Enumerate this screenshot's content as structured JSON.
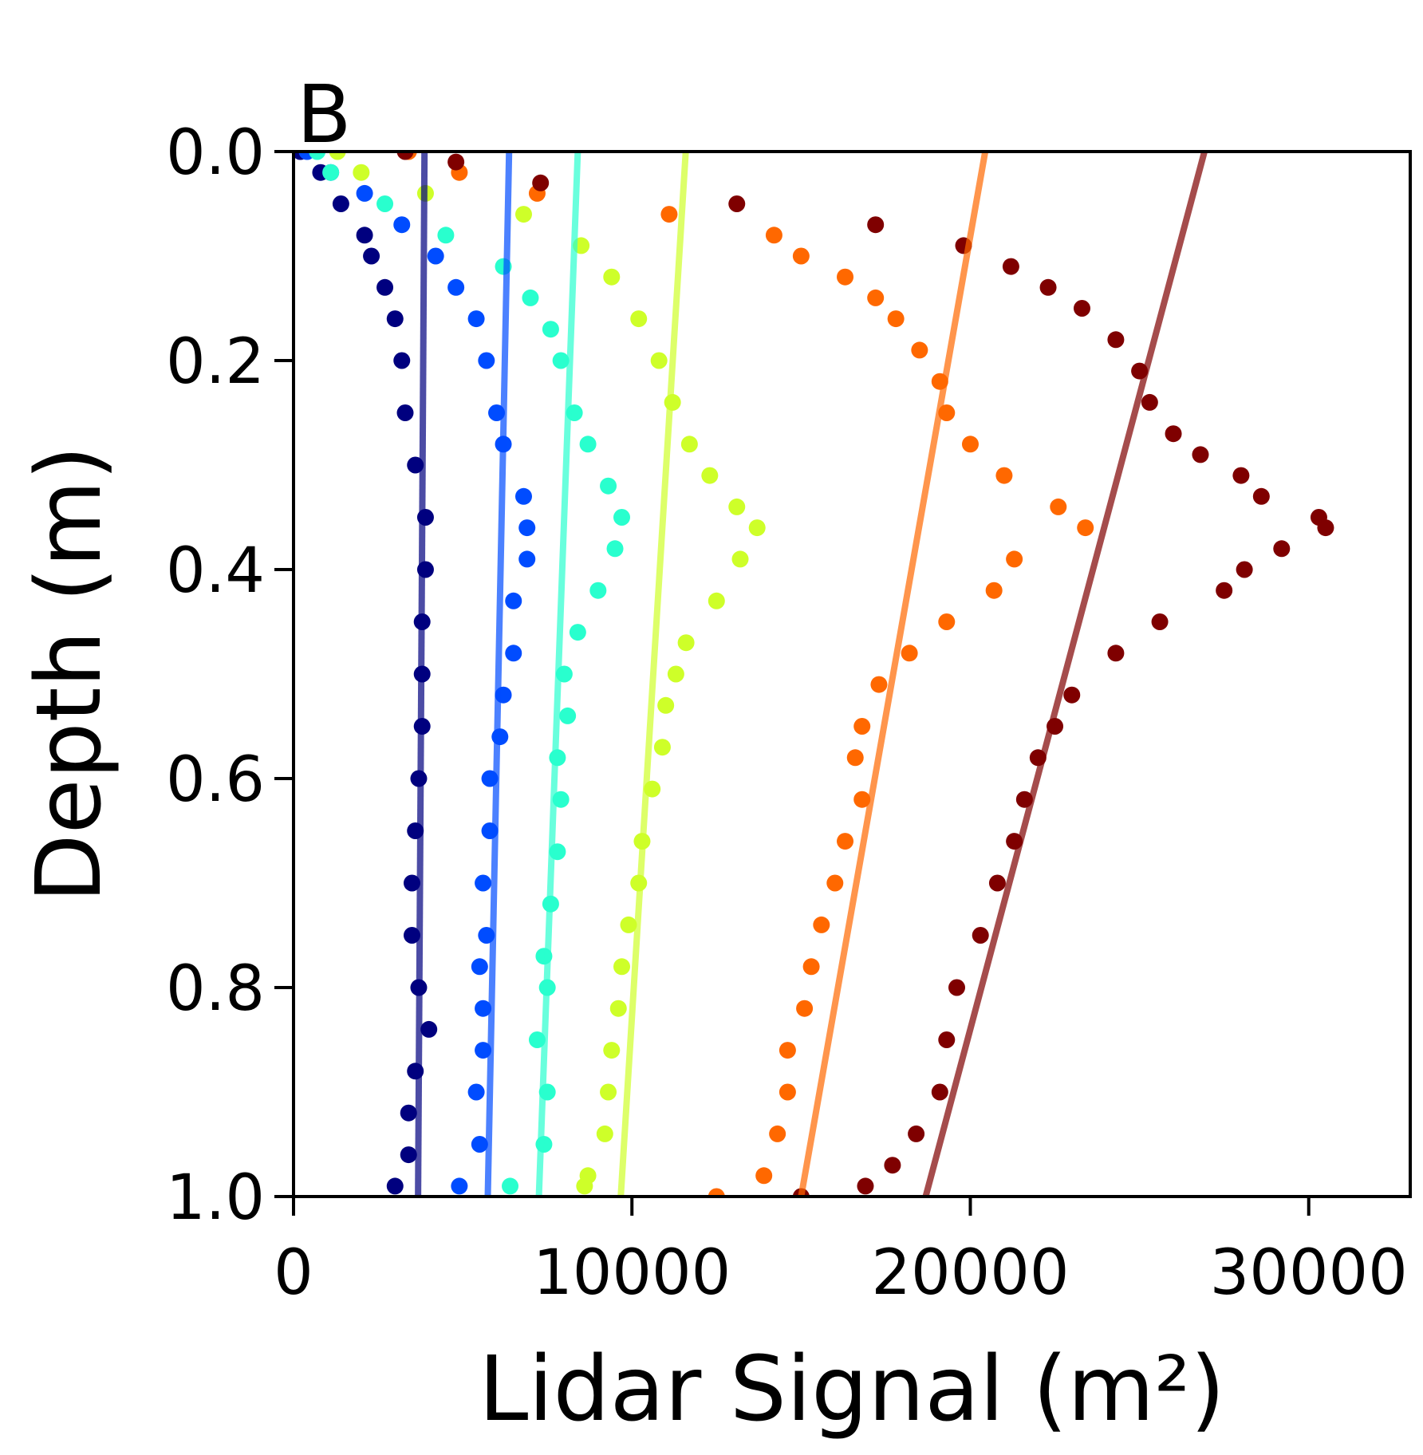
{
  "chart_data": {
    "type": "scatter",
    "panel_label": "B",
    "xlabel": "Lidar Signal (m²)",
    "ylabel": "Depth (m)",
    "xlim": [
      0,
      33000
    ],
    "ylim": [
      1.0,
      0.0
    ],
    "y_inverted": true,
    "grid": false,
    "legend": "none",
    "x_ticks": [
      "0",
      "10000",
      "20000",
      "30000"
    ],
    "x_tick_values": [
      0,
      10000,
      20000,
      30000
    ],
    "y_ticks": [
      "0.0",
      "0.2",
      "0.4",
      "0.6",
      "0.8",
      "1.0"
    ],
    "y_tick_values": [
      0,
      0.2,
      0.4,
      0.6,
      0.8,
      1.0
    ],
    "clipped_neighbor_label": "0",
    "series": [
      {
        "color": "#00007f",
        "fit_line": {
          "x_at_top": 3870,
          "x_at_bottom": 3680
        },
        "points": [
          [
            200,
            0.0
          ],
          [
            800,
            0.02
          ],
          [
            1400,
            0.05
          ],
          [
            2100,
            0.08
          ],
          [
            2300,
            0.1
          ],
          [
            2700,
            0.13
          ],
          [
            3000,
            0.16
          ],
          [
            3200,
            0.2
          ],
          [
            3300,
            0.25
          ],
          [
            3600,
            0.3
          ],
          [
            3900,
            0.35
          ],
          [
            3900,
            0.4
          ],
          [
            3800,
            0.45
          ],
          [
            3800,
            0.5
          ],
          [
            3800,
            0.55
          ],
          [
            3700,
            0.6
          ],
          [
            3600,
            0.65
          ],
          [
            3500,
            0.7
          ],
          [
            3500,
            0.75
          ],
          [
            3700,
            0.8
          ],
          [
            4000,
            0.84
          ],
          [
            3600,
            0.88
          ],
          [
            3400,
            0.92
          ],
          [
            3400,
            0.96
          ],
          [
            3000,
            0.99
          ]
        ]
      },
      {
        "color": "#004cff",
        "fit_line": {
          "x_at_top": 6370,
          "x_at_bottom": 5740
        },
        "points": [
          [
            400,
            0.0
          ],
          [
            1100,
            0.02
          ],
          [
            2100,
            0.04
          ],
          [
            3200,
            0.07
          ],
          [
            4200,
            0.1
          ],
          [
            4800,
            0.13
          ],
          [
            5400,
            0.16
          ],
          [
            5700,
            0.2
          ],
          [
            6000,
            0.25
          ],
          [
            6200,
            0.28
          ],
          [
            6800,
            0.33
          ],
          [
            6900,
            0.36
          ],
          [
            6900,
            0.39
          ],
          [
            6500,
            0.43
          ],
          [
            6500,
            0.48
          ],
          [
            6200,
            0.52
          ],
          [
            6100,
            0.56
          ],
          [
            5800,
            0.6
          ],
          [
            5800,
            0.65
          ],
          [
            5600,
            0.7
          ],
          [
            5700,
            0.75
          ],
          [
            5500,
            0.78
          ],
          [
            5600,
            0.82
          ],
          [
            5600,
            0.86
          ],
          [
            5400,
            0.9
          ],
          [
            5500,
            0.95
          ],
          [
            4900,
            0.99
          ]
        ]
      },
      {
        "color": "#29ffce",
        "fit_line": {
          "x_at_top": 8400,
          "x_at_bottom": 7250
        },
        "points": [
          [
            700,
            0.0
          ],
          [
            1100,
            0.02
          ],
          [
            2700,
            0.05
          ],
          [
            4500,
            0.08
          ],
          [
            6200,
            0.11
          ],
          [
            7000,
            0.14
          ],
          [
            7600,
            0.17
          ],
          [
            7900,
            0.2
          ],
          [
            8300,
            0.25
          ],
          [
            8700,
            0.28
          ],
          [
            9300,
            0.32
          ],
          [
            9700,
            0.35
          ],
          [
            9500,
            0.38
          ],
          [
            9000,
            0.42
          ],
          [
            8400,
            0.46
          ],
          [
            8000,
            0.5
          ],
          [
            8100,
            0.54
          ],
          [
            7800,
            0.58
          ],
          [
            7900,
            0.62
          ],
          [
            7800,
            0.67
          ],
          [
            7600,
            0.72
          ],
          [
            7400,
            0.77
          ],
          [
            7500,
            0.8
          ],
          [
            7200,
            0.85
          ],
          [
            7500,
            0.9
          ],
          [
            7400,
            0.95
          ],
          [
            6400,
            0.99
          ]
        ]
      },
      {
        "color": "#ceff29",
        "fit_line": {
          "x_at_top": 11590,
          "x_at_bottom": 9670
        },
        "points": [
          [
            1300,
            0.0
          ],
          [
            2000,
            0.02
          ],
          [
            3900,
            0.04
          ],
          [
            6800,
            0.06
          ],
          [
            8500,
            0.09
          ],
          [
            9400,
            0.12
          ],
          [
            10200,
            0.16
          ],
          [
            10800,
            0.2
          ],
          [
            11200,
            0.24
          ],
          [
            11700,
            0.28
          ],
          [
            12300,
            0.31
          ],
          [
            13100,
            0.34
          ],
          [
            13700,
            0.36
          ],
          [
            13200,
            0.39
          ],
          [
            12500,
            0.43
          ],
          [
            11600,
            0.47
          ],
          [
            11300,
            0.5
          ],
          [
            11000,
            0.53
          ],
          [
            10900,
            0.57
          ],
          [
            10600,
            0.61
          ],
          [
            10300,
            0.66
          ],
          [
            10200,
            0.7
          ],
          [
            9900,
            0.74
          ],
          [
            9700,
            0.78
          ],
          [
            9600,
            0.82
          ],
          [
            9400,
            0.86
          ],
          [
            9300,
            0.9
          ],
          [
            9200,
            0.94
          ],
          [
            8700,
            0.98
          ],
          [
            8600,
            0.99
          ]
        ]
      },
      {
        "color": "#ff6800",
        "fit_line": {
          "x_at_top": 20440,
          "x_at_bottom": 15000
        },
        "points": [
          [
            3400,
            0.0
          ],
          [
            4900,
            0.02
          ],
          [
            7200,
            0.04
          ],
          [
            11100,
            0.06
          ],
          [
            14200,
            0.08
          ],
          [
            15000,
            0.1
          ],
          [
            16300,
            0.12
          ],
          [
            17200,
            0.14
          ],
          [
            17800,
            0.16
          ],
          [
            18500,
            0.19
          ],
          [
            19100,
            0.22
          ],
          [
            19300,
            0.25
          ],
          [
            20000,
            0.28
          ],
          [
            21000,
            0.31
          ],
          [
            22600,
            0.34
          ],
          [
            23400,
            0.36
          ],
          [
            21300,
            0.39
          ],
          [
            20700,
            0.42
          ],
          [
            19300,
            0.45
          ],
          [
            18200,
            0.48
          ],
          [
            17300,
            0.51
          ],
          [
            16800,
            0.55
          ],
          [
            16600,
            0.58
          ],
          [
            16800,
            0.62
          ],
          [
            16300,
            0.66
          ],
          [
            16000,
            0.7
          ],
          [
            15600,
            0.74
          ],
          [
            15300,
            0.78
          ],
          [
            15100,
            0.82
          ],
          [
            14600,
            0.86
          ],
          [
            14600,
            0.9
          ],
          [
            14300,
            0.94
          ],
          [
            13900,
            0.98
          ],
          [
            12500,
            1.0
          ]
        ]
      },
      {
        "color": "#7f0000",
        "fit_line": {
          "x_at_top": 26920,
          "x_at_bottom": 18680
        },
        "points": [
          [
            3300,
            0.0
          ],
          [
            4800,
            0.01
          ],
          [
            7300,
            0.03
          ],
          [
            13100,
            0.05
          ],
          [
            17200,
            0.07
          ],
          [
            19800,
            0.09
          ],
          [
            21200,
            0.11
          ],
          [
            22300,
            0.13
          ],
          [
            23300,
            0.15
          ],
          [
            24300,
            0.18
          ],
          [
            25000,
            0.21
          ],
          [
            25300,
            0.24
          ],
          [
            26000,
            0.27
          ],
          [
            26800,
            0.29
          ],
          [
            28000,
            0.31
          ],
          [
            28600,
            0.33
          ],
          [
            30300,
            0.35
          ],
          [
            30500,
            0.36
          ],
          [
            29200,
            0.38
          ],
          [
            28100,
            0.4
          ],
          [
            27500,
            0.42
          ],
          [
            25600,
            0.45
          ],
          [
            24300,
            0.48
          ],
          [
            23000,
            0.52
          ],
          [
            22500,
            0.55
          ],
          [
            22000,
            0.58
          ],
          [
            21600,
            0.62
          ],
          [
            21300,
            0.66
          ],
          [
            20800,
            0.7
          ],
          [
            20300,
            0.75
          ],
          [
            19600,
            0.8
          ],
          [
            19300,
            0.85
          ],
          [
            19100,
            0.9
          ],
          [
            18400,
            0.94
          ],
          [
            17700,
            0.97
          ],
          [
            16900,
            0.99
          ],
          [
            15000,
            1.0
          ]
        ]
      }
    ]
  }
}
